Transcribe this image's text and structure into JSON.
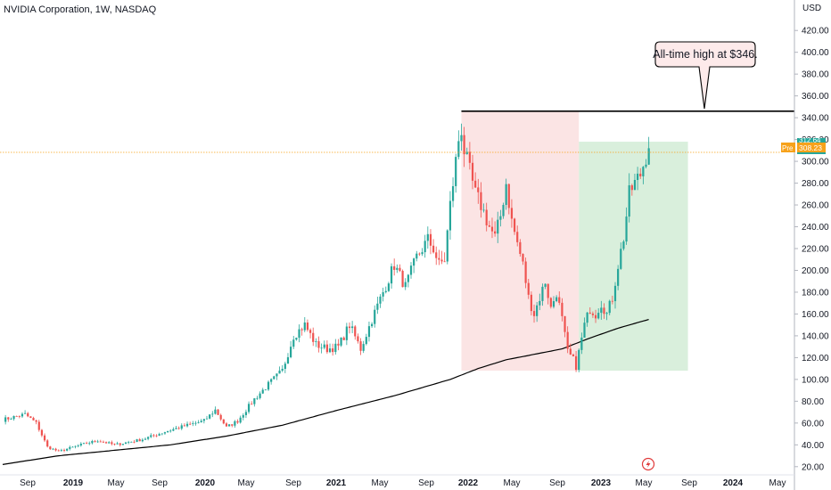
{
  "header": {
    "title": "NVIDIA Corporation, 1W, NASDAQ",
    "currency": "USD"
  },
  "price_tags": {
    "pre_label": "Pre",
    "pre_value": "308.23",
    "close_value": "312.64"
  },
  "colors": {
    "up": "#26a69a",
    "down": "#ef5350",
    "ma": "#000000",
    "drawdown_box": "#fbe4e4",
    "rally_box": "#d9efdc",
    "pre_line": "#f7a21b",
    "close_tag": "#26a69a"
  },
  "icons": {
    "lightning": "lightning-icon"
  },
  "chart_data": {
    "type": "candlestick",
    "title": "NVIDIA Corporation, 1W, NASDAQ",
    "y_axis_label": "USD",
    "ylim": [
      5,
      455
    ],
    "y_ticks": [
      "20.00",
      "40.00",
      "60.00",
      "80.00",
      "100.00",
      "120.00",
      "140.00",
      "160.00",
      "180.00",
      "200.00",
      "220.00",
      "240.00",
      "260.00",
      "280.00",
      "300.00",
      "320.00",
      "340.00",
      "360.00",
      "380.00",
      "400.00",
      "420.00"
    ],
    "x_ticks": [
      {
        "label": "Sep",
        "bold": false
      },
      {
        "label": "2019",
        "bold": true
      },
      {
        "label": "May",
        "bold": false
      },
      {
        "label": "Sep",
        "bold": false
      },
      {
        "label": "2020",
        "bold": true
      },
      {
        "label": "May",
        "bold": false
      },
      {
        "label": "Sep",
        "bold": false
      },
      {
        "label": "2021",
        "bold": true
      },
      {
        "label": "May",
        "bold": false
      },
      {
        "label": "Sep",
        "bold": false
      },
      {
        "label": "2022",
        "bold": true
      },
      {
        "label": "May",
        "bold": false
      },
      {
        "label": "Sep",
        "bold": false
      },
      {
        "label": "2023",
        "bold": true
      },
      {
        "label": "May",
        "bold": false
      },
      {
        "label": "Sep",
        "bold": false
      },
      {
        "label": "2024",
        "bold": true
      },
      {
        "label": "May",
        "bold": false
      }
    ],
    "price_anchors_weekly": [
      [
        0,
        63
      ],
      [
        8,
        68
      ],
      [
        12,
        60
      ],
      [
        16,
        38
      ],
      [
        20,
        34
      ],
      [
        28,
        40
      ],
      [
        34,
        44
      ],
      [
        40,
        40
      ],
      [
        50,
        45
      ],
      [
        58,
        52
      ],
      [
        66,
        58
      ],
      [
        72,
        62
      ],
      [
        76,
        72
      ],
      [
        80,
        56
      ],
      [
        84,
        62
      ],
      [
        90,
        82
      ],
      [
        96,
        98
      ],
      [
        100,
        108
      ],
      [
        104,
        140
      ],
      [
        108,
        150
      ],
      [
        112,
        132
      ],
      [
        116,
        128
      ],
      [
        120,
        130
      ],
      [
        124,
        150
      ],
      [
        128,
        128
      ],
      [
        132,
        155
      ],
      [
        136,
        180
      ],
      [
        140,
        205
      ],
      [
        142,
        195
      ],
      [
        144,
        185
      ],
      [
        148,
        212
      ],
      [
        152,
        228
      ],
      [
        154,
        220
      ],
      [
        156,
        205
      ],
      [
        158,
        210
      ],
      [
        160,
        260
      ],
      [
        162,
        300
      ],
      [
        163,
        320
      ],
      [
        164,
        330
      ],
      [
        165,
        310
      ],
      [
        167,
        290
      ],
      [
        169,
        270
      ],
      [
        171,
        260
      ],
      [
        174,
        240
      ],
      [
        176,
        230
      ],
      [
        178,
        250
      ],
      [
        180,
        280
      ],
      [
        182,
        245
      ],
      [
        184,
        225
      ],
      [
        186,
        205
      ],
      [
        188,
        175
      ],
      [
        190,
        160
      ],
      [
        192,
        175
      ],
      [
        194,
        190
      ],
      [
        196,
        165
      ],
      [
        198,
        180
      ],
      [
        200,
        155
      ],
      [
        202,
        125
      ],
      [
        204,
        118
      ],
      [
        205,
        112
      ],
      [
        206,
        125
      ],
      [
        208,
        150
      ],
      [
        210,
        165
      ],
      [
        212,
        160
      ],
      [
        214,
        170
      ],
      [
        216,
        160
      ],
      [
        218,
        175
      ],
      [
        220,
        205
      ],
      [
        222,
        230
      ],
      [
        224,
        270
      ],
      [
        226,
        280
      ],
      [
        228,
        288
      ],
      [
        230,
        305
      ],
      [
        231,
        312
      ]
    ],
    "moving_average_anchors": [
      [
        0,
        22
      ],
      [
        20,
        30
      ],
      [
        40,
        35
      ],
      [
        60,
        40
      ],
      [
        80,
        48
      ],
      [
        100,
        58
      ],
      [
        120,
        72
      ],
      [
        140,
        85
      ],
      [
        160,
        100
      ],
      [
        170,
        110
      ],
      [
        180,
        118
      ],
      [
        190,
        123
      ],
      [
        200,
        128
      ],
      [
        210,
        138
      ],
      [
        220,
        147
      ],
      [
        231,
        155
      ]
    ],
    "annotations": {
      "all_time_high": 346,
      "all_time_high_label": "All-time high at $346.",
      "drawdown_box": {
        "x_start_week": 164,
        "x_end_week": 206,
        "y_top": 346,
        "y_bottom": 108
      },
      "rally_box": {
        "x_start_week": 206,
        "x_end_week": 245,
        "y_top": 318,
        "y_bottom": 108
      },
      "pre_market_price": 308.23
    }
  }
}
